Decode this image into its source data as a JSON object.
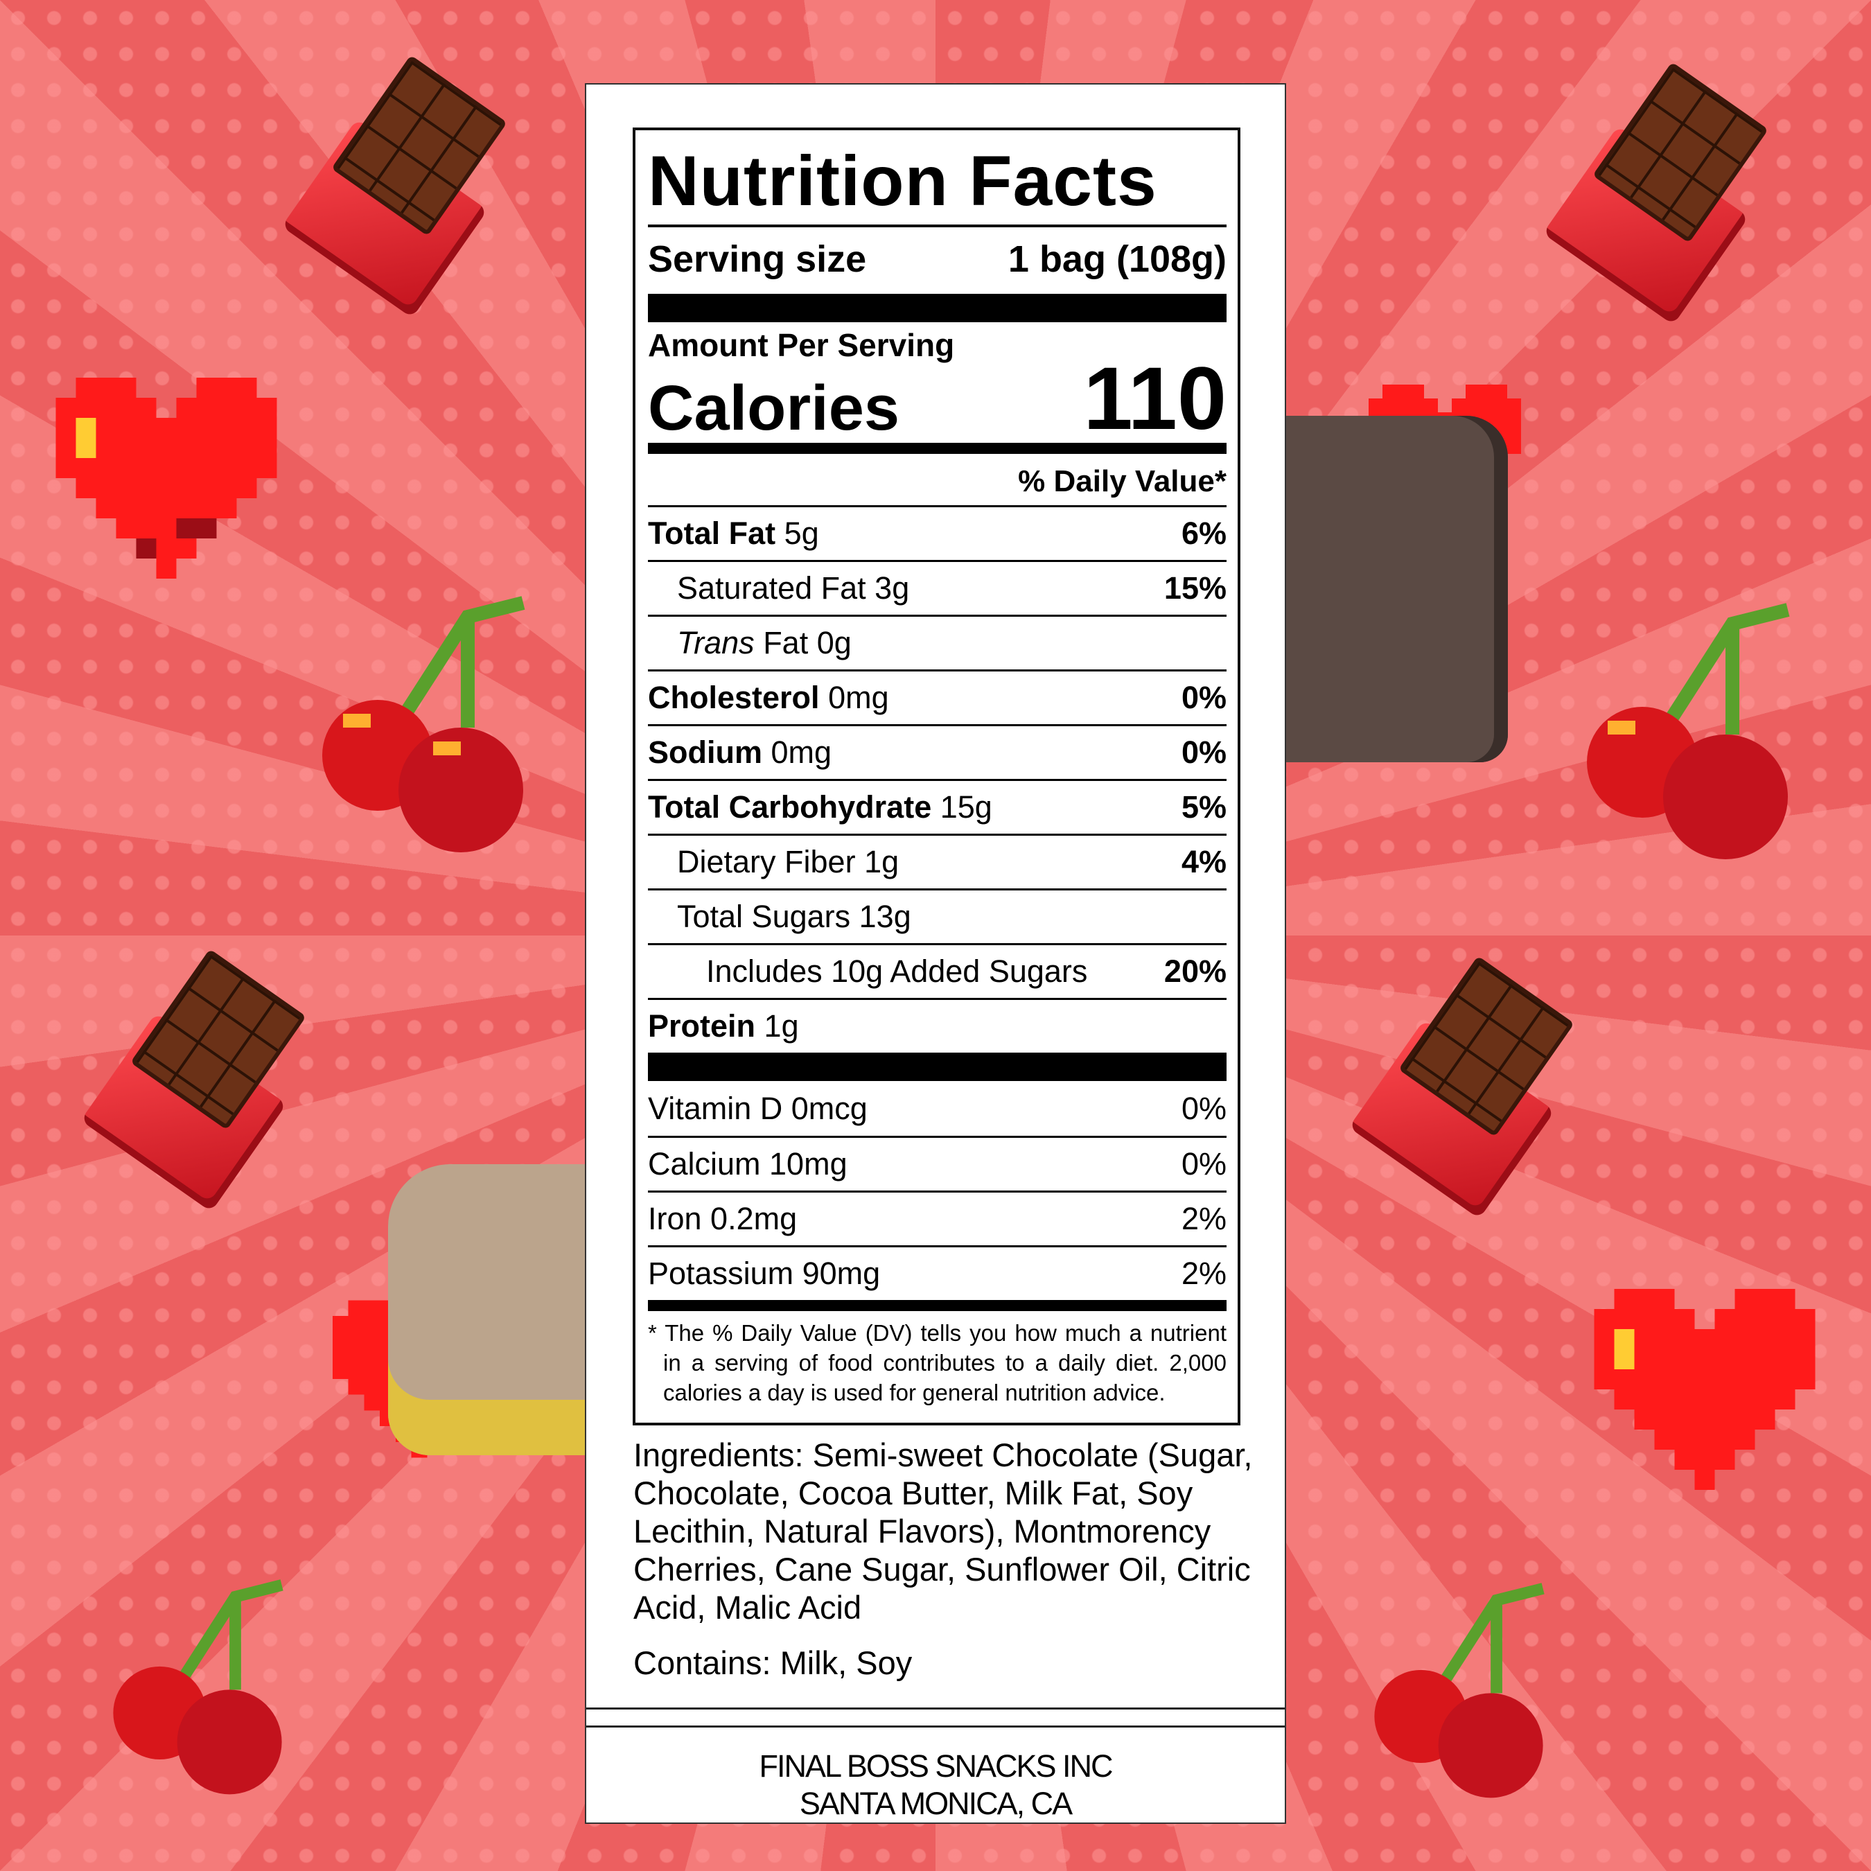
{
  "label": {
    "title": "Nutrition Facts",
    "serving_size_label": "Serving size",
    "serving_size_value": "1 bag (108g)",
    "amount_per_serving": "Amount Per Serving",
    "calories_label": "Calories",
    "calories_value": "110",
    "daily_value_header": "% Daily Value*",
    "nutrients": [
      {
        "name": "Total Fat",
        "amount": "5g",
        "dv": "6%",
        "bold": true,
        "indent": 0
      },
      {
        "name": "Saturated Fat 3g",
        "amount": "",
        "dv": "15%",
        "bold": false,
        "indent": 1
      },
      {
        "name": "Trans",
        "name_suffix": " Fat 0g",
        "amount": "",
        "dv": "",
        "bold": false,
        "indent": 1,
        "italic_prefix": true
      },
      {
        "name": "Cholesterol",
        "amount": "0mg",
        "dv": "0%",
        "bold": true,
        "indent": 0
      },
      {
        "name": "Sodium",
        "amount": "0mg",
        "dv": "0%",
        "bold": true,
        "indent": 0
      },
      {
        "name": "Total Carbohydrate",
        "amount": "15g",
        "dv": "5%",
        "bold": true,
        "indent": 0
      },
      {
        "name": "Dietary Fiber 1g",
        "amount": "",
        "dv": "4%",
        "bold": false,
        "indent": 1
      },
      {
        "name": "Total Sugars 13g",
        "amount": "",
        "dv": "",
        "bold": false,
        "indent": 1
      },
      {
        "name": "Includes 10g Added Sugars",
        "amount": "",
        "dv": "20%",
        "bold": false,
        "indent": 2
      },
      {
        "name": "Protein",
        "amount": "1g",
        "dv": "",
        "bold": true,
        "indent": 0
      }
    ],
    "vitamins": [
      {
        "name": "Vitamin D 0mcg",
        "dv": "0%"
      },
      {
        "name": "Calcium 10mg",
        "dv": "0%"
      },
      {
        "name": "Iron 0.2mg",
        "dv": "2%"
      },
      {
        "name": "Potassium 90mg",
        "dv": "2%"
      }
    ],
    "footnote": "* The % Daily Value (DV) tells you how much a nutrient in a serving of food contributes to a daily diet. 2,000 calories a day is used for general nutrition advice."
  },
  "ingredients": "Ingredients: Semi-sweet Chocolate (Sugar, Chocolate, Cocoa Butter, Milk Fat, Soy Lecithin, Natural Flavors), Montmorency Cherries, Cane Sugar, Sunflower Oil, Citric Acid, Malic Acid",
  "contains": "Contains: Milk, Soy",
  "company": {
    "name": "FINAL BOSS SNACKS INC",
    "location": "SANTA MONICA, CA"
  },
  "colors": {
    "background": "#f06a6a",
    "ray": "#ec5f60",
    "heart": "#ff1a1a",
    "chocolate": "#6b3117",
    "wrapper": "#e0202a"
  },
  "decorations": [
    "chocolate-bar-icon",
    "pixel-heart-icon",
    "pixel-cherries-icon",
    "pixel-animal-character"
  ]
}
